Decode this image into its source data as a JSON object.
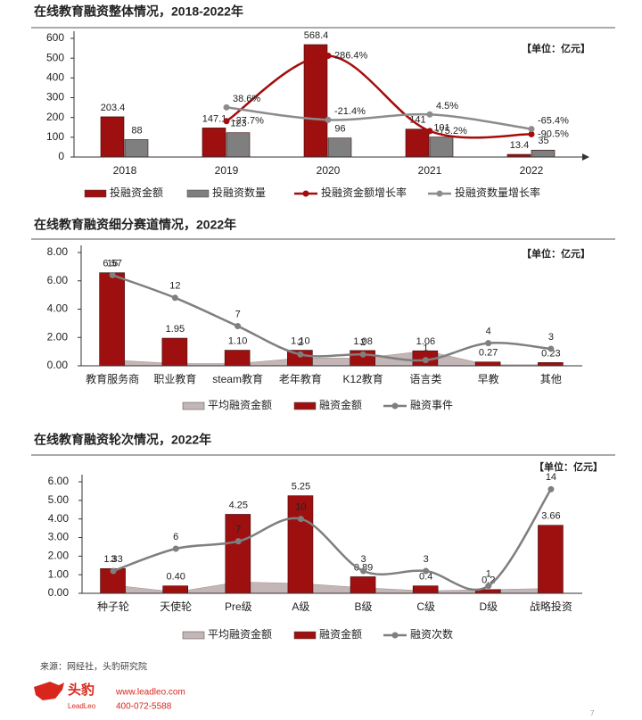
{
  "chart_data": [
    {
      "type": "bar",
      "title": "在线教育融资整体情况，2018-2022年",
      "unit_note": "【单位：亿元】",
      "categories": [
        "2018",
        "2019",
        "2020",
        "2021",
        "2022"
      ],
      "ylim": [
        0,
        600
      ],
      "yticks": [
        0,
        100,
        200,
        300,
        400,
        500,
        600
      ],
      "y2lim": [
        -200,
        370
      ],
      "series": [
        {
          "name": "投融资金额",
          "type": "bar",
          "color": "#9e1010",
          "values": [
            203.4,
            147.1,
            568.4,
            141,
            13.4
          ]
        },
        {
          "name": "投融资数量",
          "type": "bar",
          "color": "#7f7f7f",
          "values": [
            88,
            123,
            96,
            101,
            35
          ]
        },
        {
          "name": "投融资金额增长率",
          "type": "line",
          "axis": "y2",
          "color": "#a30d0d",
          "values": [
            null,
            -27.7,
            286.4,
            -75.2,
            -90.5
          ],
          "value_labels": [
            null,
            "-27.7%",
            "286.4%",
            "-75.2%",
            "-90.5%"
          ]
        },
        {
          "name": "投融资数量增长率",
          "type": "line",
          "axis": "y2",
          "color": "#8c8c8c",
          "values": [
            null,
            38.6,
            -21.4,
            4.5,
            -65.4
          ],
          "value_labels": [
            null,
            "38.6%",
            "-21.4%",
            "4.5%",
            "-65.4%"
          ]
        }
      ]
    },
    {
      "type": "bar",
      "title": "在线教育融资细分赛道情况，2022年",
      "unit_note": "【单位：亿元】",
      "categories": [
        "教育服务商",
        "职业教育",
        "steam教育",
        "老年教育",
        "K12教育",
        "语言类",
        "早教",
        "其他"
      ],
      "ylim": [
        0,
        8
      ],
      "yticks": [
        {
          "value": 0,
          "label": "0.00"
        },
        {
          "value": 2,
          "label": "2.00"
        },
        {
          "value": 4,
          "label": "4.00"
        },
        {
          "value": 6,
          "label": "6.00"
        },
        {
          "value": 8,
          "label": "8.00"
        }
      ],
      "y2lim": [
        0,
        20
      ],
      "series": [
        {
          "name": "平均融资金额",
          "type": "area",
          "color": "#c4b6b6",
          "values": [
            0.41,
            0.16,
            0.16,
            0.55,
            0.54,
            1.06,
            0.07,
            0.08
          ]
        },
        {
          "name": "融资金额",
          "type": "bar",
          "color": "#9e1010",
          "values": [
            6.57,
            1.95,
            1.1,
            1.1,
            1.08,
            1.06,
            0.27,
            0.23
          ],
          "value_labels": [
            "6.57",
            "1.95",
            "1.10",
            "1.10",
            "1.08",
            "1.06",
            "0.27",
            "0.23"
          ]
        },
        {
          "name": "融资事件",
          "type": "line",
          "axis": "y2",
          "color": "#7f7f7f",
          "values": [
            16,
            12,
            7,
            2,
            2,
            1,
            4,
            3
          ]
        }
      ]
    },
    {
      "type": "bar",
      "title": "在线教育融资轮次情况，2022年",
      "unit_note": "【单位：亿元】",
      "categories": [
        "种子轮",
        "天使轮",
        "Pre级",
        "A级",
        "B级",
        "C级",
        "D级",
        "战略投资"
      ],
      "ylim": [
        0,
        6
      ],
      "yticks": [
        {
          "value": 0,
          "label": "0.00"
        },
        {
          "value": 1,
          "label": "1.00"
        },
        {
          "value": 2,
          "label": "2.00"
        },
        {
          "value": 3,
          "label": "3.00"
        },
        {
          "value": 4,
          "label": "4.00"
        },
        {
          "value": 5,
          "label": "5.00"
        },
        {
          "value": 6,
          "label": "6.00"
        }
      ],
      "y2lim": [
        0,
        15
      ],
      "series": [
        {
          "name": "平均融资金额",
          "type": "area",
          "color": "#c4b6b6",
          "values": [
            0.44,
            0.07,
            0.61,
            0.53,
            0.3,
            0.13,
            0.2,
            0.26
          ]
        },
        {
          "name": "融资金额",
          "type": "bar",
          "color": "#9e1010",
          "values": [
            1.33,
            0.4,
            4.25,
            5.25,
            0.89,
            0.4,
            0.2,
            3.66
          ],
          "value_labels": [
            "1.33",
            "0.40",
            "4.25",
            "5.25",
            "0.89",
            "0.4",
            "0.2",
            "3.66"
          ]
        },
        {
          "name": "融资次数",
          "type": "line",
          "axis": "y2",
          "color": "#7f7f7f",
          "values": [
            3,
            6,
            7,
            10,
            3,
            3,
            1,
            14
          ]
        }
      ]
    }
  ],
  "footer": {
    "source": "来源：网经社，头豹研究院",
    "brand": "头豹",
    "brand_en": "LeadLeo",
    "url": "www.leadleo.com",
    "phone": "400-072-5588",
    "page": "7"
  }
}
